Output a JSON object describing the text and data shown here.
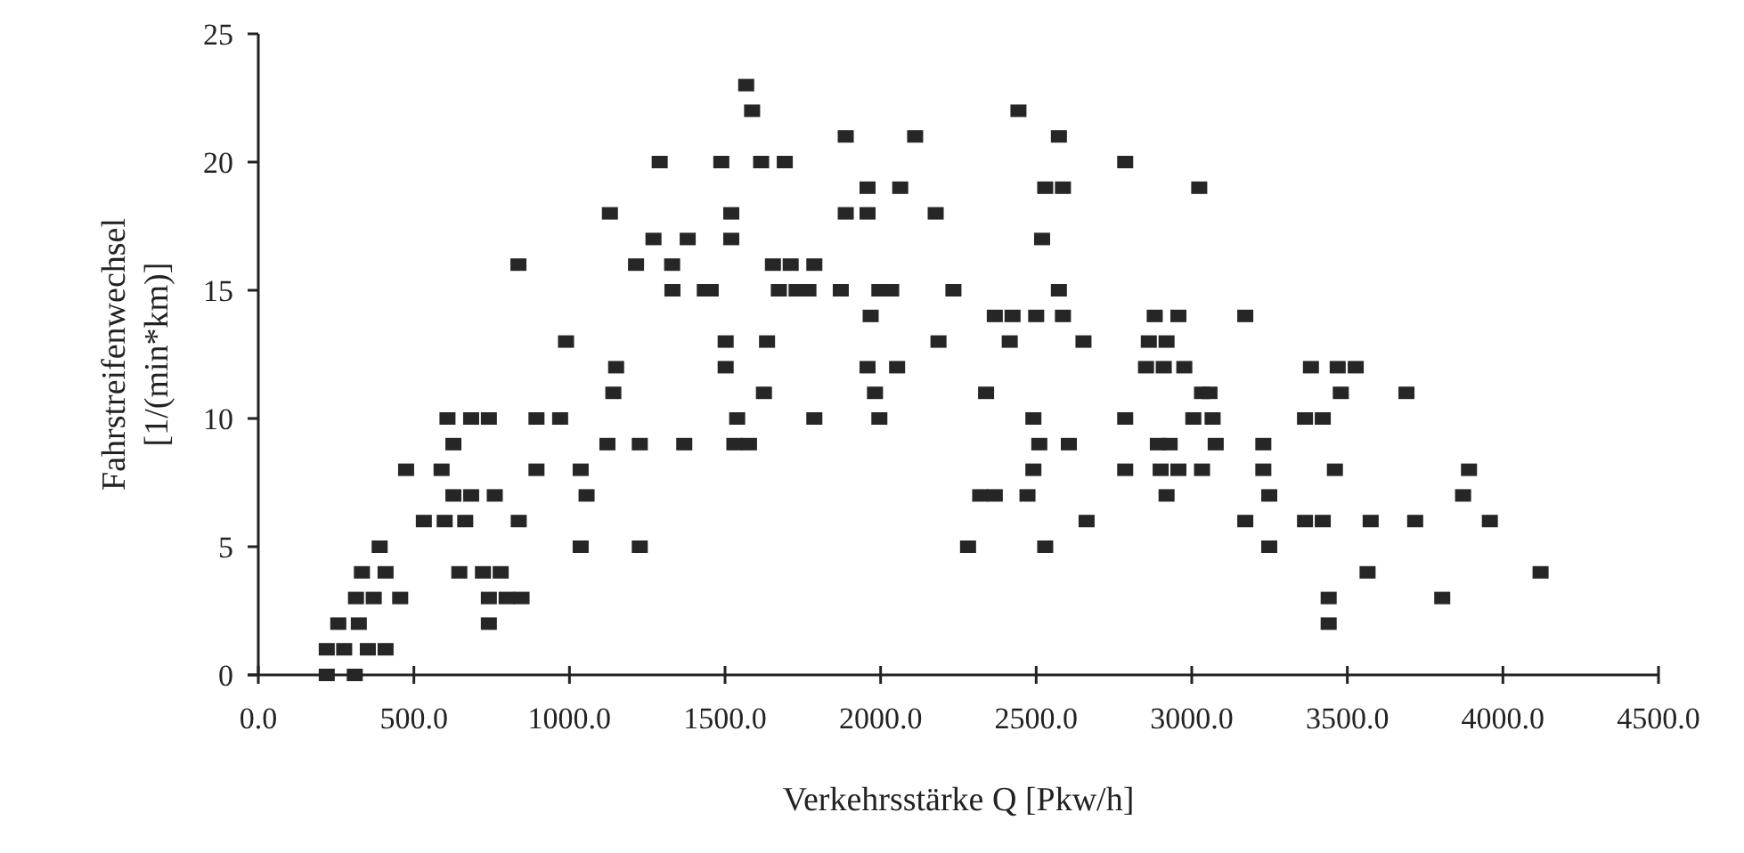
{
  "chart_data": {
    "type": "scatter",
    "xlabel": "Verkehrsstärke Q [Pkw/h]",
    "ylabel": "Fahrstreifenwechsel\n[1/(min*km)]",
    "xlim": [
      0,
      4500
    ],
    "ylim": [
      0,
      25
    ],
    "xticks": [
      {
        "value": 0,
        "label": "0.0"
      },
      {
        "value": 500,
        "label": "500.0"
      },
      {
        "value": 1000,
        "label": "1000.0"
      },
      {
        "value": 1500,
        "label": "1500.0"
      },
      {
        "value": 2000,
        "label": "2000.0"
      },
      {
        "value": 2500,
        "label": "2500.0"
      },
      {
        "value": 3000,
        "label": "3000.0"
      },
      {
        "value": 3500,
        "label": "3500.0"
      },
      {
        "value": 4000,
        "label": "4000.0"
      },
      {
        "value": 4500,
        "label": "4500.0"
      }
    ],
    "yticks": [
      0,
      5,
      10,
      15,
      20,
      25
    ],
    "grid": false,
    "marker": "square",
    "series": [
      {
        "color": "#262626",
        "x": [
          220,
          310,
          220,
          276,
          352,
          409,
          257,
          323,
          741,
          314,
          371,
          456,
          741,
          798,
          846,
          333,
          409,
          646,
          722,
          779,
          390,
          1036,
          1226,
          532,
          599,
          665,
          837,
          627,
          684,
          760,
          1055,
          475,
          589,
          894,
          1036,
          627,
          1122,
          1226,
          1369,
          608,
          684,
          741,
          894,
          970,
          1141,
          1150,
          989,
          1331,
          1435,
          836,
          1214,
          1130,
          1270,
          1330,
          1290,
          1380,
          1568,
          1587,
          2443,
          1888,
          2111,
          2573,
          1488,
          1616,
          1692,
          2786,
          1958,
          2063,
          2529,
          2586,
          3024,
          1520,
          1888,
          1958,
          2177,
          1520,
          2519,
          1654,
          1711,
          1787,
          1454,
          1673,
          1730,
          1768,
          1872,
          1996,
          2034,
          2234,
          2573,
          1968,
          2367,
          2424,
          2500,
          2586,
          2881,
          2957,
          1502,
          1635,
          2186,
          2415,
          2652,
          2862,
          2919,
          1502,
          1958,
          2053,
          2853,
          2910,
          2976,
          1625,
          1982,
          2339,
          3033,
          1539,
          1787,
          1996,
          2491,
          2786,
          3005,
          1530,
          1577,
          2510,
          2605,
          2891,
          2929,
          2491,
          2786,
          2900,
          2957,
          3033,
          2320,
          2367,
          2472,
          2919,
          2662,
          2281,
          2529,
          3172,
          3383,
          3469,
          3527,
          3057,
          3479,
          3690,
          3067,
          3364,
          3421,
          3077,
          3230,
          3230,
          3460,
          3891,
          3249,
          3872,
          3172,
          3364,
          3421,
          3575,
          3718,
          3958,
          3249,
          3565,
          4121,
          3440,
          3805,
          3440
        ],
        "values": [
          0,
          0,
          1,
          1,
          1,
          1,
          2,
          2,
          2,
          3,
          3,
          3,
          3,
          3,
          3,
          4,
          4,
          4,
          4,
          4,
          5,
          5,
          5,
          6,
          6,
          6,
          6,
          7,
          7,
          7,
          7,
          8,
          8,
          8,
          8,
          9,
          9,
          9,
          9,
          10,
          10,
          10,
          10,
          10,
          11,
          12,
          13,
          15,
          15,
          16,
          16,
          18,
          17,
          16,
          20,
          17,
          23,
          22,
          22,
          21,
          21,
          21,
          20,
          20,
          20,
          20,
          19,
          19,
          19,
          19,
          19,
          18,
          18,
          18,
          18,
          17,
          17,
          16,
          16,
          16,
          15,
          15,
          15,
          15,
          15,
          15,
          15,
          15,
          15,
          14,
          14,
          14,
          14,
          14,
          14,
          14,
          13,
          13,
          13,
          13,
          13,
          13,
          13,
          12,
          12,
          12,
          12,
          12,
          12,
          11,
          11,
          11,
          11,
          10,
          10,
          10,
          10,
          10,
          10,
          9,
          9,
          9,
          9,
          9,
          9,
          8,
          8,
          8,
          8,
          8,
          7,
          7,
          7,
          7,
          6,
          5,
          5,
          14,
          12,
          12,
          12,
          11,
          11,
          11,
          10,
          10,
          10,
          9,
          9,
          8,
          8,
          8,
          7,
          7,
          6,
          6,
          6,
          6,
          6,
          6,
          5,
          4,
          4,
          3,
          3,
          2
        ]
      }
    ]
  }
}
